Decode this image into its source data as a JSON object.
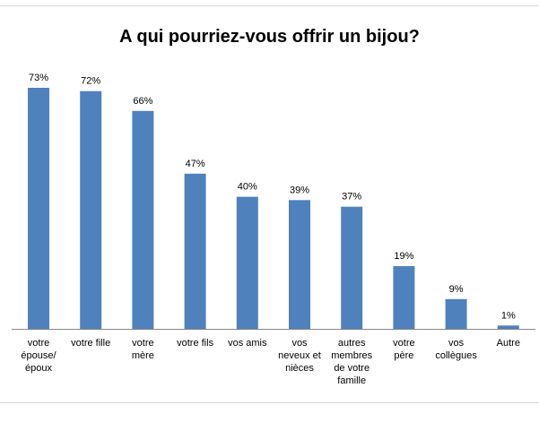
{
  "chart_data": {
    "type": "bar",
    "title": "A qui pourriez-vous offrir un bijou?",
    "categories": [
      [
        "votre",
        "épouse/",
        "époux"
      ],
      [
        "votre fille"
      ],
      [
        "votre",
        "mère"
      ],
      [
        "votre fils"
      ],
      [
        "vos amis"
      ],
      [
        "vos",
        "neveux et",
        "nièces"
      ],
      [
        "autres",
        "membres",
        "de votre",
        "famille"
      ],
      [
        "votre",
        "père"
      ],
      [
        "vos",
        "collègues"
      ],
      [
        "Autre"
      ]
    ],
    "values": [
      73,
      72,
      66,
      47,
      40,
      39,
      37,
      19,
      9,
      1
    ],
    "value_labels": [
      "73%",
      "72%",
      "66%",
      "47%",
      "40%",
      "39%",
      "37%",
      "19%",
      "9%",
      "1%"
    ],
    "ylim": [
      0,
      73
    ],
    "grid": false,
    "legend": "none",
    "bar_color": "#4f81bd",
    "axis_color": "#868686"
  }
}
